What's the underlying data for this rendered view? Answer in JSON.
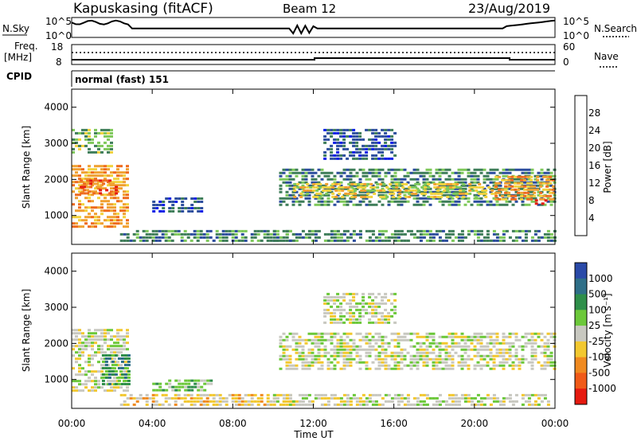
{
  "header": {
    "station": "Kapuskasing (fitACF)",
    "beam": "Beam 12",
    "date": "23/Aug/2019"
  },
  "noise_panel": {
    "left_label": "N.Sky",
    "right_label": "N.Search",
    "ticks": [
      "10^5",
      "10^0"
    ]
  },
  "freq_panel": {
    "left_label_1": "Freq.",
    "left_label_2": "[MHz]",
    "left_ticks": [
      "18",
      "8"
    ],
    "right_label": "Nave",
    "right_ticks": [
      "60",
      "0"
    ]
  },
  "cpid": {
    "label": "CPID",
    "value": "normal (fast) 151"
  },
  "colors": {
    "power_scale": [
      "#0a1ee6",
      "#2d4e9e",
      "#3f7e5a",
      "#7ec85a",
      "#f2d23c",
      "#f0a030",
      "#ee6a1e",
      "#e61a10"
    ],
    "velocity_scale": [
      "#2a4aa8",
      "#2f6f88",
      "#2f8f4a",
      "#6cc83a",
      "#c8c8c0",
      "#f2c830",
      "#f08a20",
      "#f05a18",
      "#e61a10"
    ]
  },
  "chart_data": [
    {
      "type": "heatmap",
      "name": "power",
      "ylabel": "Slant Range [km]",
      "y_ticks": [
        "1000",
        "2000",
        "3000",
        "4000"
      ],
      "y_tick_values": [
        1000,
        2000,
        3000,
        4000
      ],
      "ylim": [
        200,
        4500
      ],
      "xlim_hours": [
        0,
        24
      ],
      "colorbar_label": "Power [dB]",
      "colorbar_ticks": [
        "4",
        "8",
        "12",
        "16",
        "20",
        "24",
        "28"
      ],
      "colorbar_values": [
        4,
        8,
        12,
        16,
        20,
        24,
        28
      ],
      "colorbar_range": [
        0,
        32
      ],
      "regions": [
        {
          "t0": 0.0,
          "t1": 2.7,
          "r0": 700,
          "r1": 2400,
          "level": 5
        },
        {
          "t0": 0.4,
          "t1": 2.2,
          "r0": 1600,
          "r1": 2000,
          "level": 6
        },
        {
          "t0": 0.0,
          "t1": 2.0,
          "r0": 2700,
          "r1": 3400,
          "level": 3
        },
        {
          "t0": 2.4,
          "t1": 11.0,
          "r0": 300,
          "r1": 600,
          "level": 2
        },
        {
          "t0": 4.0,
          "t1": 6.5,
          "r0": 1100,
          "r1": 1500,
          "level": 1
        },
        {
          "t0": 10.3,
          "t1": 24.0,
          "r0": 1300,
          "r1": 2300,
          "level": 2
        },
        {
          "t0": 11.0,
          "t1": 21.0,
          "r0": 1500,
          "r1": 1900,
          "level": 4
        },
        {
          "t0": 12.5,
          "t1": 16.0,
          "r0": 2600,
          "r1": 3400,
          "level": 1
        },
        {
          "t0": 21.0,
          "t1": 24.0,
          "r0": 1400,
          "r1": 2100,
          "level": 5
        },
        {
          "t0": 23.0,
          "t1": 23.5,
          "r0": 1300,
          "r1": 1450,
          "level": 7
        },
        {
          "t0": 10.0,
          "t1": 24.0,
          "r0": 250,
          "r1": 600,
          "level": 2
        }
      ]
    },
    {
      "type": "heatmap",
      "name": "velocity",
      "ylabel": "Slant Range [km]",
      "y_ticks": [
        "1000",
        "2000",
        "3000",
        "4000"
      ],
      "y_tick_values": [
        1000,
        2000,
        3000,
        4000
      ],
      "ylim": [
        200,
        4500
      ],
      "xlabel": "Time UT",
      "x_ticks": [
        "00:00",
        "04:00",
        "08:00",
        "12:00",
        "16:00",
        "20:00",
        "00:00"
      ],
      "x_tick_hours": [
        0,
        4,
        8,
        12,
        16,
        20,
        24
      ],
      "colorbar_label": "Velocity [m s⁻¹]",
      "colorbar_ticks": [
        "1000",
        "500",
        "100",
        "25",
        "-25",
        "-100",
        "-500",
        "-1000"
      ],
      "regions": [
        {
          "t0": 0.0,
          "t1": 2.7,
          "r0": 700,
          "r1": 2400,
          "level": 4
        },
        {
          "t0": 1.5,
          "t1": 2.8,
          "r0": 900,
          "r1": 1700,
          "level": 2
        },
        {
          "t0": 2.4,
          "t1": 11.0,
          "r0": 300,
          "r1": 600,
          "level": 5
        },
        {
          "t0": 4.0,
          "t1": 7.0,
          "r0": 700,
          "r1": 1000,
          "level": 3
        },
        {
          "t0": 10.3,
          "t1": 24.0,
          "r0": 1300,
          "r1": 2300,
          "level": 4
        },
        {
          "t0": 12.5,
          "t1": 16.0,
          "r0": 2600,
          "r1": 3400,
          "level": 4
        },
        {
          "t0": 10.0,
          "t1": 24.0,
          "r0": 250,
          "r1": 600,
          "level": 4
        }
      ]
    }
  ]
}
